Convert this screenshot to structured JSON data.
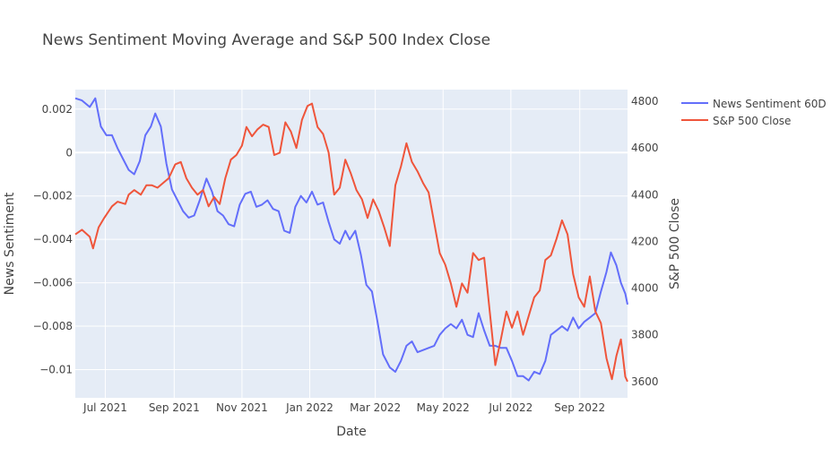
{
  "chart_data": {
    "type": "line",
    "title": "News Sentiment Moving Average and S&P 500 Index Close",
    "xlabel": "Date",
    "ylabel": "News Sentiment",
    "y2label": "S&P 500 Close",
    "x_range": [
      "2021-06-04",
      "2022-10-14"
    ],
    "ylim": [
      -0.0113,
      0.0029
    ],
    "y2lim": [
      3530,
      4850
    ],
    "x_ticks": [
      {
        "date": "2021-07-01",
        "label": "Jul 2021"
      },
      {
        "date": "2021-09-01",
        "label": "Sep 2021"
      },
      {
        "date": "2021-11-01",
        "label": "Nov 2021"
      },
      {
        "date": "2022-01-01",
        "label": "Jan 2022"
      },
      {
        "date": "2022-03-01",
        "label": "Mar 2022"
      },
      {
        "date": "2022-05-01",
        "label": "May 2022"
      },
      {
        "date": "2022-07-01",
        "label": "Jul 2022"
      },
      {
        "date": "2022-09-01",
        "label": "Sep 2022"
      }
    ],
    "y_ticks": [
      {
        "value": 0.002,
        "label": "0.002"
      },
      {
        "value": 0,
        "label": "0"
      },
      {
        "value": -0.002,
        "label": "−0.002"
      },
      {
        "value": -0.004,
        "label": "−0.004"
      },
      {
        "value": -0.006,
        "label": "−0.006"
      },
      {
        "value": -0.008,
        "label": "−0.008"
      },
      {
        "value": -0.01,
        "label": "−0.01"
      }
    ],
    "y2_ticks": [
      {
        "value": 3600,
        "label": "3600"
      },
      {
        "value": 3800,
        "label": "3800"
      },
      {
        "value": 4000,
        "label": "4000"
      },
      {
        "value": 4200,
        "label": "4200"
      },
      {
        "value": 4400,
        "label": "4400"
      },
      {
        "value": 4600,
        "label": "4600"
      },
      {
        "value": 4800,
        "label": "4800"
      }
    ],
    "legend_position": "top-right",
    "grid": true,
    "colors": {
      "plot_bg": "#e5ecf6",
      "grid": "#ffffff",
      "sentiment": "#636efa",
      "sp500": "#ef553b",
      "text": "#444444",
      "title": "#444444"
    },
    "series": [
      {
        "name": "News Sentiment 60D",
        "axis": "y",
        "points": [
          [
            "2021-06-04",
            0.0025
          ],
          [
            "2021-06-10",
            0.0024
          ],
          [
            "2021-06-17",
            0.0021
          ],
          [
            "2021-06-22",
            0.0025
          ],
          [
            "2021-06-27",
            0.0012
          ],
          [
            "2021-07-02",
            0.0008
          ],
          [
            "2021-07-07",
            0.0008
          ],
          [
            "2021-07-12",
            0.0002
          ],
          [
            "2021-07-17",
            -0.0003
          ],
          [
            "2021-07-22",
            -0.0008
          ],
          [
            "2021-07-27",
            -0.001
          ],
          [
            "2021-08-01",
            -0.0004
          ],
          [
            "2021-08-06",
            0.0008
          ],
          [
            "2021-08-11",
            0.0012
          ],
          [
            "2021-08-15",
            0.0018
          ],
          [
            "2021-08-20",
            0.0012
          ],
          [
            "2021-08-25",
            -0.0005
          ],
          [
            "2021-08-30",
            -0.0017
          ],
          [
            "2021-09-04",
            -0.0022
          ],
          [
            "2021-09-09",
            -0.0027
          ],
          [
            "2021-09-14",
            -0.003
          ],
          [
            "2021-09-19",
            -0.0029
          ],
          [
            "2021-09-24",
            -0.0022
          ],
          [
            "2021-09-30",
            -0.0012
          ],
          [
            "2021-10-05",
            -0.0018
          ],
          [
            "2021-10-10",
            -0.0027
          ],
          [
            "2021-10-15",
            -0.0029
          ],
          [
            "2021-10-20",
            -0.0033
          ],
          [
            "2021-10-25",
            -0.0034
          ],
          [
            "2021-10-30",
            -0.0024
          ],
          [
            "2021-11-04",
            -0.0019
          ],
          [
            "2021-11-09",
            -0.0018
          ],
          [
            "2021-11-14",
            -0.0025
          ],
          [
            "2021-11-19",
            -0.0024
          ],
          [
            "2021-11-24",
            -0.0022
          ],
          [
            "2021-11-29",
            -0.0026
          ],
          [
            "2021-12-04",
            -0.0027
          ],
          [
            "2021-12-09",
            -0.0036
          ],
          [
            "2021-12-14",
            -0.0037
          ],
          [
            "2021-12-19",
            -0.0025
          ],
          [
            "2021-12-24",
            -0.002
          ],
          [
            "2021-12-29",
            -0.0023
          ],
          [
            "2022-01-03",
            -0.0018
          ],
          [
            "2022-01-08",
            -0.0024
          ],
          [
            "2022-01-13",
            -0.0023
          ],
          [
            "2022-01-18",
            -0.0032
          ],
          [
            "2022-01-23",
            -0.004
          ],
          [
            "2022-01-28",
            -0.0042
          ],
          [
            "2022-02-02",
            -0.0036
          ],
          [
            "2022-02-06",
            -0.004
          ],
          [
            "2022-02-11",
            -0.0036
          ],
          [
            "2022-02-16",
            -0.0047
          ],
          [
            "2022-02-21",
            -0.0061
          ],
          [
            "2022-02-26",
            -0.0064
          ],
          [
            "2022-03-03",
            -0.0078
          ],
          [
            "2022-03-08",
            -0.0093
          ],
          [
            "2022-03-14",
            -0.0099
          ],
          [
            "2022-03-19",
            -0.0101
          ],
          [
            "2022-03-24",
            -0.0096
          ],
          [
            "2022-03-29",
            -0.0089
          ],
          [
            "2022-04-03",
            -0.0087
          ],
          [
            "2022-04-08",
            -0.0092
          ],
          [
            "2022-04-13",
            -0.0091
          ],
          [
            "2022-04-18",
            -0.009
          ],
          [
            "2022-04-23",
            -0.0089
          ],
          [
            "2022-04-28",
            -0.0084
          ],
          [
            "2022-05-03",
            -0.0081
          ],
          [
            "2022-05-08",
            -0.0079
          ],
          [
            "2022-05-13",
            -0.0081
          ],
          [
            "2022-05-18",
            -0.0077
          ],
          [
            "2022-05-23",
            -0.0084
          ],
          [
            "2022-05-28",
            -0.0085
          ],
          [
            "2022-06-02",
            -0.0074
          ],
          [
            "2022-06-07",
            -0.0082
          ],
          [
            "2022-06-12",
            -0.0089
          ],
          [
            "2022-06-17",
            -0.0089
          ],
          [
            "2022-06-22",
            -0.009
          ],
          [
            "2022-06-27",
            -0.009
          ],
          [
            "2022-07-02",
            -0.0096
          ],
          [
            "2022-07-07",
            -0.0103
          ],
          [
            "2022-07-12",
            -0.0103
          ],
          [
            "2022-07-17",
            -0.0105
          ],
          [
            "2022-07-22",
            -0.0101
          ],
          [
            "2022-07-27",
            -0.0102
          ],
          [
            "2022-08-01",
            -0.0096
          ],
          [
            "2022-08-06",
            -0.0084
          ],
          [
            "2022-08-11",
            -0.0082
          ],
          [
            "2022-08-16",
            -0.008
          ],
          [
            "2022-08-21",
            -0.0082
          ],
          [
            "2022-08-26",
            -0.0076
          ],
          [
            "2022-08-31",
            -0.0081
          ],
          [
            "2022-09-05",
            -0.0078
          ],
          [
            "2022-09-10",
            -0.0076
          ],
          [
            "2022-09-15",
            -0.0074
          ],
          [
            "2022-09-20",
            -0.0064
          ],
          [
            "2022-09-25",
            -0.0055
          ],
          [
            "2022-09-29",
            -0.0046
          ],
          [
            "2022-10-04",
            -0.0052
          ],
          [
            "2022-10-08",
            -0.006
          ],
          [
            "2022-10-12",
            -0.0065
          ],
          [
            "2022-10-14",
            -0.007
          ]
        ]
      },
      {
        "name": "S&P 500 Close",
        "axis": "y2",
        "points": [
          [
            "2021-06-04",
            4230
          ],
          [
            "2021-06-10",
            4250
          ],
          [
            "2021-06-17",
            4220
          ],
          [
            "2021-06-20",
            4170
          ],
          [
            "2021-06-25",
            4260
          ],
          [
            "2021-06-30",
            4300
          ],
          [
            "2021-07-07",
            4350
          ],
          [
            "2021-07-12",
            4370
          ],
          [
            "2021-07-19",
            4360
          ],
          [
            "2021-07-22",
            4400
          ],
          [
            "2021-07-27",
            4420
          ],
          [
            "2021-08-02",
            4400
          ],
          [
            "2021-08-07",
            4440
          ],
          [
            "2021-08-12",
            4440
          ],
          [
            "2021-08-17",
            4430
          ],
          [
            "2021-08-22",
            4450
          ],
          [
            "2021-08-27",
            4470
          ],
          [
            "2021-09-02",
            4530
          ],
          [
            "2021-09-07",
            4540
          ],
          [
            "2021-09-12",
            4470
          ],
          [
            "2021-09-17",
            4430
          ],
          [
            "2021-09-22",
            4400
          ],
          [
            "2021-09-27",
            4420
          ],
          [
            "2021-10-02",
            4350
          ],
          [
            "2021-10-07",
            4390
          ],
          [
            "2021-10-12",
            4360
          ],
          [
            "2021-10-17",
            4470
          ],
          [
            "2021-10-22",
            4550
          ],
          [
            "2021-10-27",
            4570
          ],
          [
            "2021-11-01",
            4610
          ],
          [
            "2021-11-05",
            4690
          ],
          [
            "2021-11-10",
            4650
          ],
          [
            "2021-11-15",
            4680
          ],
          [
            "2021-11-20",
            4700
          ],
          [
            "2021-11-25",
            4690
          ],
          [
            "2021-11-30",
            4570
          ],
          [
            "2021-12-05",
            4580
          ],
          [
            "2021-12-10",
            4710
          ],
          [
            "2021-12-15",
            4670
          ],
          [
            "2021-12-20",
            4600
          ],
          [
            "2021-12-25",
            4720
          ],
          [
            "2021-12-30",
            4780
          ],
          [
            "2022-01-03",
            4790
          ],
          [
            "2022-01-08",
            4690
          ],
          [
            "2022-01-13",
            4660
          ],
          [
            "2022-01-18",
            4580
          ],
          [
            "2022-01-23",
            4400
          ],
          [
            "2022-01-28",
            4430
          ],
          [
            "2022-02-02",
            4550
          ],
          [
            "2022-02-07",
            4490
          ],
          [
            "2022-02-12",
            4420
          ],
          [
            "2022-02-17",
            4380
          ],
          [
            "2022-02-22",
            4300
          ],
          [
            "2022-02-27",
            4380
          ],
          [
            "2022-03-04",
            4330
          ],
          [
            "2022-03-09",
            4260
          ],
          [
            "2022-03-14",
            4180
          ],
          [
            "2022-03-19",
            4440
          ],
          [
            "2022-03-24",
            4520
          ],
          [
            "2022-03-29",
            4620
          ],
          [
            "2022-04-03",
            4540
          ],
          [
            "2022-04-08",
            4500
          ],
          [
            "2022-04-13",
            4450
          ],
          [
            "2022-04-18",
            4410
          ],
          [
            "2022-04-23",
            4280
          ],
          [
            "2022-04-28",
            4150
          ],
          [
            "2022-05-03",
            4100
          ],
          [
            "2022-05-08",
            4020
          ],
          [
            "2022-05-13",
            3920
          ],
          [
            "2022-05-18",
            4020
          ],
          [
            "2022-05-23",
            3980
          ],
          [
            "2022-05-28",
            4150
          ],
          [
            "2022-06-02",
            4120
          ],
          [
            "2022-06-07",
            4130
          ],
          [
            "2022-06-12",
            3900
          ],
          [
            "2022-06-17",
            3670
          ],
          [
            "2022-06-22",
            3780
          ],
          [
            "2022-06-27",
            3900
          ],
          [
            "2022-07-02",
            3830
          ],
          [
            "2022-07-07",
            3900
          ],
          [
            "2022-07-12",
            3800
          ],
          [
            "2022-07-17",
            3880
          ],
          [
            "2022-07-22",
            3960
          ],
          [
            "2022-07-27",
            3990
          ],
          [
            "2022-08-01",
            4120
          ],
          [
            "2022-08-06",
            4140
          ],
          [
            "2022-08-11",
            4210
          ],
          [
            "2022-08-16",
            4290
          ],
          [
            "2022-08-21",
            4230
          ],
          [
            "2022-08-26",
            4060
          ],
          [
            "2022-08-31",
            3960
          ],
          [
            "2022-09-05",
            3920
          ],
          [
            "2022-09-10",
            4050
          ],
          [
            "2022-09-15",
            3900
          ],
          [
            "2022-09-20",
            3850
          ],
          [
            "2022-09-25",
            3700
          ],
          [
            "2022-09-30",
            3610
          ],
          [
            "2022-10-04",
            3710
          ],
          [
            "2022-10-08",
            3780
          ],
          [
            "2022-10-12",
            3620
          ],
          [
            "2022-10-14",
            3600
          ]
        ]
      }
    ]
  }
}
